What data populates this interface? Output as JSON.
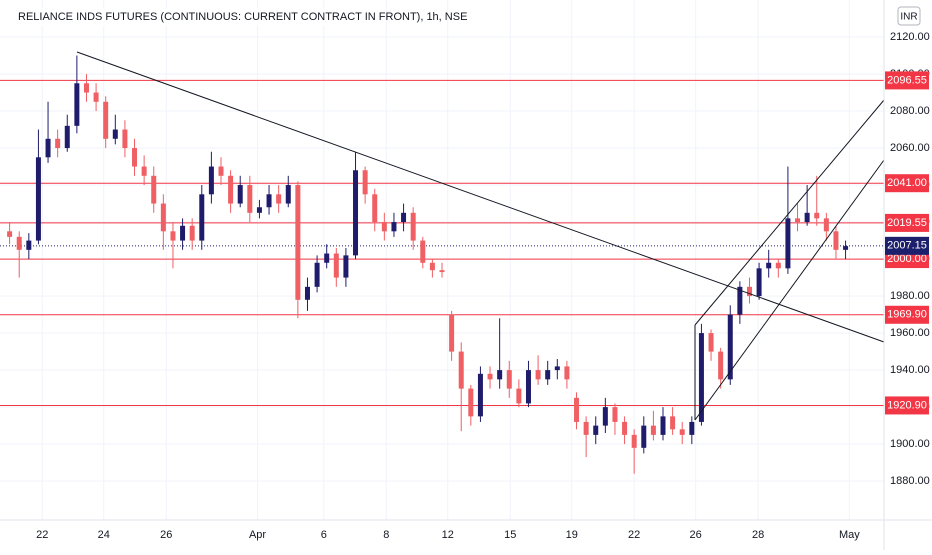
{
  "chart_data": {
    "type": "candlestick",
    "title": "RELIANCE INDS FUTURES (CONTINUOUS: CURRENT CONTRACT IN FRONT), 1h, NSE",
    "currency": "INR",
    "up_color": "#1f1d6b",
    "down_color": "#ef5f63",
    "grid": true,
    "open": [
      2015,
      2012,
      2005,
      2010,
      2055,
      2065,
      2060,
      2072,
      2095,
      2090,
      2085,
      2065,
      2070,
      2060,
      2050,
      2045,
      2030,
      2015,
      2010,
      2018,
      2010,
      2035,
      2050,
      2045,
      2030,
      2040,
      2025,
      2028,
      2035,
      2030,
      2040,
      1978,
      1985,
      1998,
      2003,
      1990,
      2002,
      2048,
      2035,
      2020,
      2015,
      2020,
      2025,
      2010,
      1998,
      1994,
      1970,
      1950,
      1930,
      1915,
      1938,
      1935,
      1940,
      1930,
      1922,
      1940,
      1935,
      1940,
      1942,
      1925,
      1912,
      1905,
      1910,
      1920,
      1912,
      1905,
      1898,
      1910,
      1905,
      1915,
      1908,
      1905,
      1912,
      1960,
      1950,
      1935,
      1970,
      1985,
      1980,
      1995,
      1998,
      1995,
      2022,
      2020,
      2025,
      2022,
      2015,
      2005
    ],
    "high": [
      2020,
      2015,
      2014,
      2070,
      2085,
      2070,
      2078,
      2110,
      2100,
      2095,
      2088,
      2078,
      2075,
      2065,
      2056,
      2050,
      2035,
      2020,
      2022,
      2022,
      2040,
      2058,
      2055,
      2048,
      2045,
      2045,
      2032,
      2040,
      2040,
      2045,
      2042,
      1990,
      2002,
      2008,
      2006,
      2006,
      2058,
      2050,
      2038,
      2025,
      2025,
      2030,
      2028,
      2012,
      2000,
      1998,
      1972,
      1955,
      1932,
      1942,
      1942,
      1968,
      1945,
      1935,
      1945,
      1948,
      1945,
      1946,
      1945,
      1928,
      1915,
      1915,
      1925,
      1922,
      1915,
      1908,
      1915,
      1918,
      1920,
      1920,
      1912,
      1915,
      1965,
      1962,
      1952,
      1975,
      1988,
      1990,
      1998,
      2005,
      2000,
      2050,
      2030,
      2040,
      2045,
      2025,
      2018,
      2010
    ],
    "low": [
      2008,
      1990,
      2000,
      2008,
      2052,
      2055,
      2058,
      2068,
      2085,
      2080,
      2060,
      2062,
      2055,
      2045,
      2040,
      2025,
      2005,
      1995,
      2005,
      2005,
      2005,
      2030,
      2040,
      2025,
      2028,
      2020,
      2022,
      2024,
      2025,
      2028,
      1968,
      1972,
      1982,
      1995,
      1985,
      1985,
      2000,
      2030,
      2015,
      2010,
      2012,
      2015,
      2005,
      1995,
      1990,
      1990,
      1945,
      1907,
      1910,
      1912,
      1930,
      1930,
      1925,
      1920,
      1920,
      1932,
      1932,
      1935,
      1930,
      1908,
      1893,
      1900,
      1906,
      1905,
      1900,
      1884,
      1895,
      1902,
      1902,
      1905,
      1900,
      1900,
      1910,
      1945,
      1930,
      1932,
      1965,
      1976,
      1978,
      1990,
      1990,
      1992,
      2015,
      2018,
      2018,
      2010,
      2000,
      2000
    ],
    "close": [
      2012,
      2005,
      2010,
      2055,
      2065,
      2060,
      2072,
      2095,
      2090,
      2085,
      2065,
      2070,
      2060,
      2050,
      2045,
      2030,
      2015,
      2010,
      2018,
      2010,
      2035,
      2050,
      2045,
      2030,
      2040,
      2025,
      2028,
      2035,
      2030,
      2040,
      1978,
      1985,
      1998,
      2003,
      1990,
      2002,
      2048,
      2035,
      2020,
      2015,
      2020,
      2025,
      2010,
      1998,
      1994,
      1993,
      1950,
      1930,
      1915,
      1938,
      1935,
      1940,
      1930,
      1922,
      1940,
      1935,
      1940,
      1942,
      1935,
      1912,
      1905,
      1910,
      1920,
      1912,
      1905,
      1898,
      1910,
      1905,
      1915,
      1908,
      1905,
      1912,
      1960,
      1950,
      1935,
      1970,
      1985,
      1980,
      1995,
      1998,
      1995,
      2022,
      2020,
      2025,
      2022,
      2015,
      2005,
      2007
    ],
    "xlim": [
      -1,
      91
    ],
    "xticks": [
      {
        "value": 3.4,
        "label": "22"
      },
      {
        "value": 9.8,
        "label": "24"
      },
      {
        "value": 16.3,
        "label": "26"
      },
      {
        "value": 25.8,
        "label": "Apr"
      },
      {
        "value": 32.7,
        "label": "6"
      },
      {
        "value": 39.2,
        "label": "8"
      },
      {
        "value": 45.6,
        "label": "12"
      },
      {
        "value": 52.1,
        "label": "15"
      },
      {
        "value": 58.5,
        "label": "19"
      },
      {
        "value": 65,
        "label": "22"
      },
      {
        "value": 71.4,
        "label": "26"
      },
      {
        "value": 77.9,
        "label": "28"
      },
      {
        "value": 87.4,
        "label": "May"
      }
    ],
    "ylim": [
      1859,
      2140
    ],
    "yticks": [
      {
        "value": 1880,
        "label": "1880.00"
      },
      {
        "value": 1900,
        "label": "1900.00"
      },
      {
        "value": 1920,
        "label": "1920.00"
      },
      {
        "value": 1940,
        "label": "1940.00"
      },
      {
        "value": 1960,
        "label": "1960.00"
      },
      {
        "value": 1980,
        "label": "1980.00"
      },
      {
        "value": 2000,
        "label": "2000.00"
      },
      {
        "value": 2020,
        "label": "2020.00"
      },
      {
        "value": 2040,
        "label": "2040.00"
      },
      {
        "value": 2060,
        "label": "2060.00"
      },
      {
        "value": 2080,
        "label": "2080.00"
      },
      {
        "value": 2100,
        "label": "2100.00"
      },
      {
        "value": 2120,
        "label": "2120.00"
      }
    ],
    "level_color": "#f23645",
    "levels": [
      2096.55,
      {
        "value": 2041,
        "label": "2041.00"
      },
      2019.55,
      {
        "value": 2000,
        "label": "2000.00"
      },
      {
        "value": 1969.9,
        "label": "1969.90"
      },
      {
        "value": 1920.9,
        "label": "1920.90"
      }
    ],
    "last_price": {
      "value": 2007.15,
      "label": "2007.15"
    },
    "last_price_color": "#1c1f6b"
  }
}
